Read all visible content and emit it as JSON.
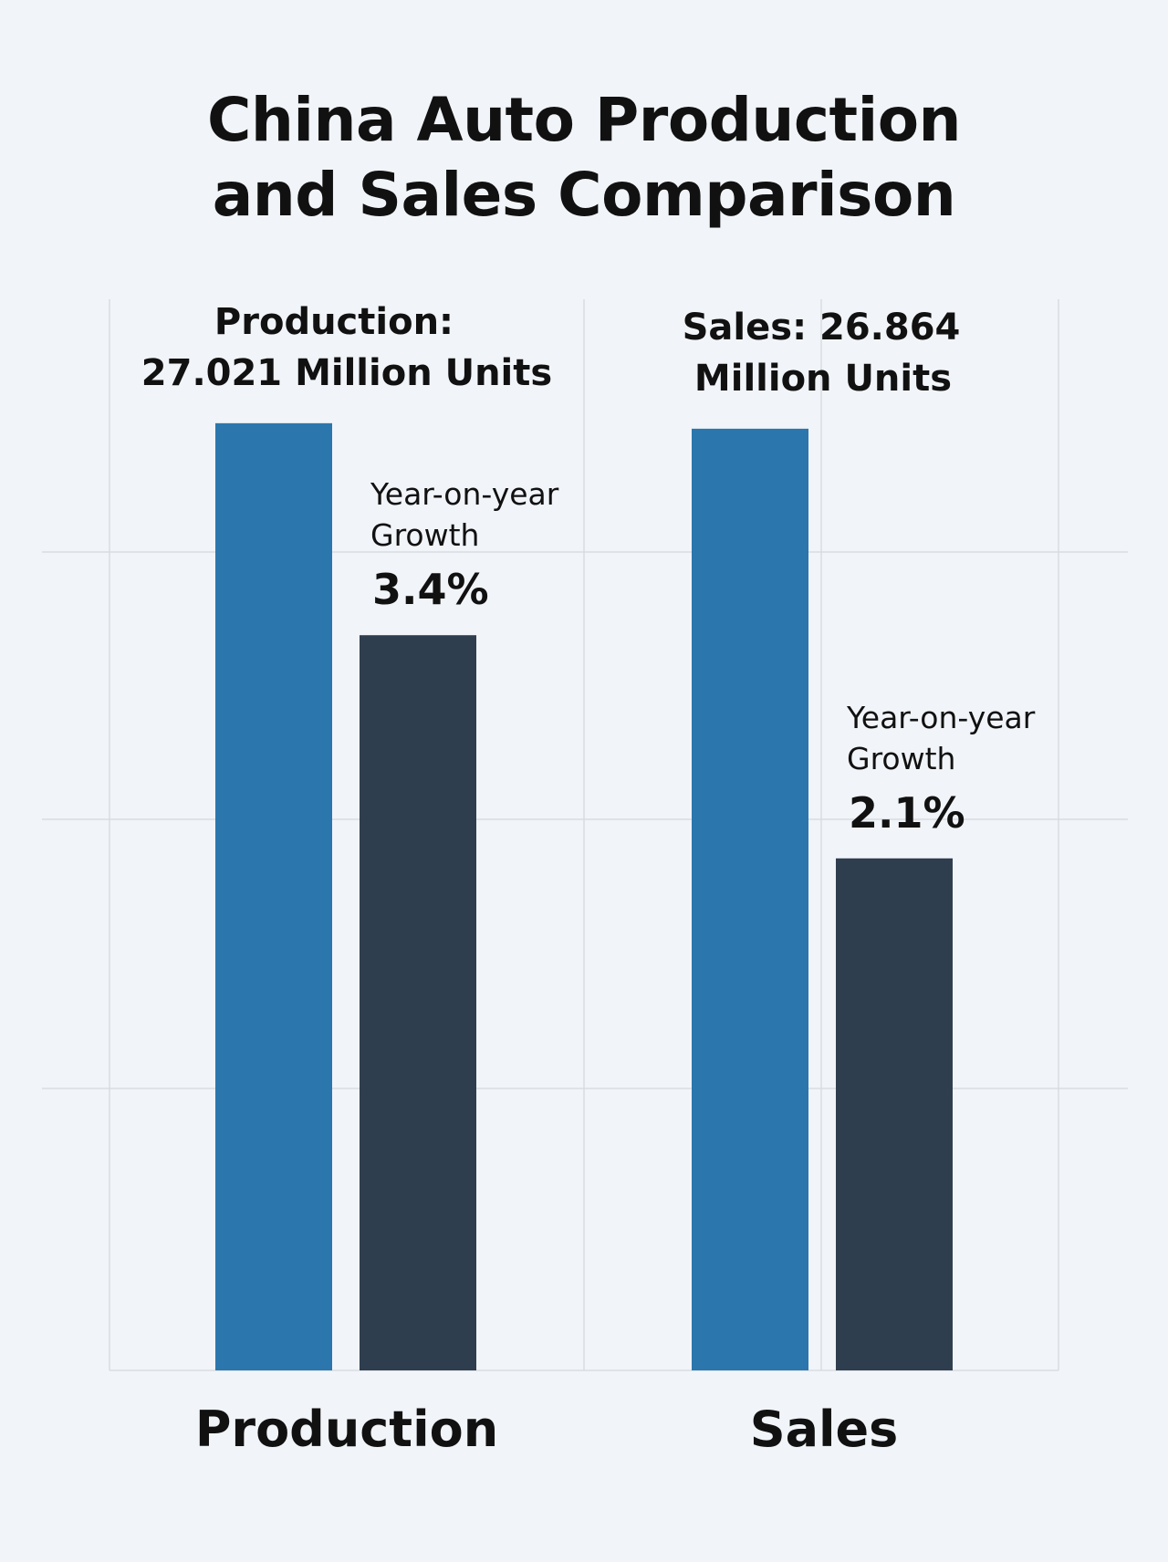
{
  "chart_data": {
    "type": "bar",
    "title_lines": [
      "China Auto Production",
      "and Sales Comparison"
    ],
    "categories": [
      "Production",
      "Sales"
    ],
    "groups": [
      {
        "category": "Production",
        "volume": {
          "value": 27.021,
          "label_lines": [
            "Production:",
            "27.021 Million Units"
          ]
        },
        "growth": {
          "value": 3.4,
          "label_lines": [
            "Year-on-year",
            "Growth"
          ],
          "value_label": "3.4%"
        }
      },
      {
        "category": "Sales",
        "volume": {
          "value": 26.864,
          "label_lines": [
            "Sales:  26.864",
            "Million Units"
          ]
        },
        "growth": {
          "value": 2.1,
          "label_lines": [
            "Year-on-year",
            "Growth"
          ],
          "value_label": "2.1%"
        }
      }
    ],
    "grid": true,
    "colors": {
      "volume": "#2b77ad",
      "growth": "#2f3e4f",
      "grid": "#d9dde2",
      "background": "#f1f4f8"
    }
  }
}
